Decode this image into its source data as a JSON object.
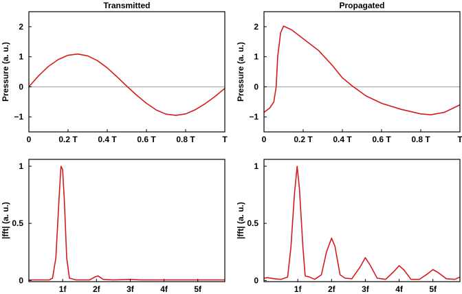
{
  "chart_data": [
    {
      "type": "line",
      "title": "Transmitted",
      "xlabel": "",
      "ylabel": "Pressure (a. u.)",
      "xlim": [
        0,
        1
      ],
      "ylim": [
        -1.5,
        2.5
      ],
      "xticks": [
        {
          "v": 0,
          "label": "0"
        },
        {
          "v": 0.2,
          "label": "0.2 T"
        },
        {
          "v": 0.4,
          "label": "0.4 T"
        },
        {
          "v": 0.6,
          "label": "0.6 T"
        },
        {
          "v": 0.8,
          "label": "0.8 T"
        },
        {
          "v": 1,
          "label": "T"
        }
      ],
      "yticks": [
        {
          "v": -1,
          "label": "−1"
        },
        {
          "v": 0,
          "label": "0"
        },
        {
          "v": 1,
          "label": "1"
        },
        {
          "v": 2,
          "label": "2"
        }
      ],
      "zero_line": true,
      "color": "#d7191c",
      "x": [
        0,
        0.05,
        0.1,
        0.15,
        0.2,
        0.25,
        0.3,
        0.35,
        0.4,
        0.45,
        0.5,
        0.55,
        0.6,
        0.65,
        0.7,
        0.75,
        0.8,
        0.85,
        0.9,
        0.95,
        1.0
      ],
      "y": [
        0,
        0.37,
        0.68,
        0.91,
        1.05,
        1.09,
        1.03,
        0.87,
        0.63,
        0.33,
        0.02,
        -0.28,
        -0.55,
        -0.77,
        -0.91,
        -0.95,
        -0.9,
        -0.76,
        -0.56,
        -0.32,
        -0.05
      ]
    },
    {
      "type": "line",
      "title": "Propagated",
      "xlabel": "",
      "ylabel": "Pressure (a. u.)",
      "xlim": [
        0,
        1
      ],
      "ylim": [
        -1.5,
        2.5
      ],
      "xticks": [
        {
          "v": 0,
          "label": "0"
        },
        {
          "v": 0.2,
          "label": "0.2 T"
        },
        {
          "v": 0.4,
          "label": "0.4 T"
        },
        {
          "v": 0.6,
          "label": "0.6 T"
        },
        {
          "v": 0.8,
          "label": "0.8 T"
        },
        {
          "v": 1,
          "label": "T"
        }
      ],
      "yticks": [
        {
          "v": -1,
          "label": "−1"
        },
        {
          "v": 0,
          "label": "0"
        },
        {
          "v": 1,
          "label": "1"
        },
        {
          "v": 2,
          "label": "2"
        }
      ],
      "zero_line": true,
      "color": "#d7191c",
      "x": [
        0,
        0.03,
        0.05,
        0.062,
        0.07,
        0.085,
        0.1,
        0.14,
        0.2,
        0.28,
        0.35,
        0.4,
        0.45,
        0.52,
        0.6,
        0.7,
        0.8,
        0.85,
        0.92,
        1.0
      ],
      "y": [
        -0.85,
        -0.7,
        -0.5,
        0,
        1.0,
        1.8,
        2.02,
        1.9,
        1.6,
        1.2,
        0.7,
        0.3,
        0.03,
        -0.3,
        -0.55,
        -0.75,
        -0.9,
        -0.93,
        -0.85,
        -0.6
      ]
    },
    {
      "type": "line",
      "title": "",
      "xlabel": "",
      "ylabel": "|fft| (a. u.)",
      "xlim": [
        0,
        5.8
      ],
      "ylim": [
        -0.01,
        1.06
      ],
      "xticks": [
        {
          "v": 1,
          "label": "1f"
        },
        {
          "v": 2,
          "label": "2f"
        },
        {
          "v": 3,
          "label": "3f"
        },
        {
          "v": 4,
          "label": "4f"
        },
        {
          "v": 5,
          "label": "5f"
        }
      ],
      "yticks": [
        {
          "v": 0,
          "label": "0"
        },
        {
          "v": 0.5,
          "label": "0.5"
        },
        {
          "v": 1,
          "label": "1"
        }
      ],
      "zero_line": false,
      "color": "#d7191c",
      "x": [
        0,
        0.6,
        0.7,
        0.8,
        0.9,
        0.95,
        1.0,
        1.05,
        1.12,
        1.2,
        1.4,
        1.8,
        1.95,
        2.05,
        2.2,
        2.5,
        3.0,
        3.3,
        5.8
      ],
      "y": [
        0.005,
        0.005,
        0.02,
        0.2,
        0.75,
        1.0,
        0.97,
        0.7,
        0.2,
        0.02,
        0.005,
        0.005,
        0.03,
        0.04,
        0.01,
        0.005,
        0.01,
        0.005,
        0.005
      ]
    },
    {
      "type": "line",
      "title": "",
      "xlabel": "",
      "ylabel": "|fft| (a. u.)",
      "xlim": [
        0,
        5.8
      ],
      "ylim": [
        -0.01,
        1.06
      ],
      "xticks": [
        {
          "v": 1,
          "label": "1f"
        },
        {
          "v": 2,
          "label": "2f"
        },
        {
          "v": 3,
          "label": "3f"
        },
        {
          "v": 4,
          "label": "4f"
        },
        {
          "v": 5,
          "label": "5f"
        }
      ],
      "yticks": [
        {
          "v": 0,
          "label": "0"
        },
        {
          "v": 0.5,
          "label": "0.5"
        },
        {
          "v": 1,
          "label": "1"
        }
      ],
      "zero_line": false,
      "color": "#d7191c",
      "x": [
        0,
        0.1,
        0.3,
        0.5,
        0.7,
        0.8,
        0.9,
        0.98,
        1.05,
        1.15,
        1.22,
        1.35,
        1.5,
        1.7,
        1.85,
        2.0,
        2.1,
        2.25,
        2.4,
        2.6,
        2.85,
        3.0,
        3.15,
        3.35,
        3.6,
        3.85,
        4.0,
        4.15,
        4.35,
        4.6,
        4.85,
        5.0,
        5.15,
        5.4,
        5.65,
        5.8
      ],
      "y": [
        0.02,
        0.025,
        0.015,
        0.01,
        0.03,
        0.3,
        0.75,
        1.0,
        0.8,
        0.3,
        0.04,
        0.03,
        0.01,
        0.05,
        0.25,
        0.37,
        0.3,
        0.05,
        0.02,
        0.015,
        0.12,
        0.2,
        0.13,
        0.02,
        0.01,
        0.08,
        0.13,
        0.09,
        0.01,
        0.01,
        0.06,
        0.095,
        0.07,
        0.015,
        0.01,
        0.03
      ]
    }
  ]
}
